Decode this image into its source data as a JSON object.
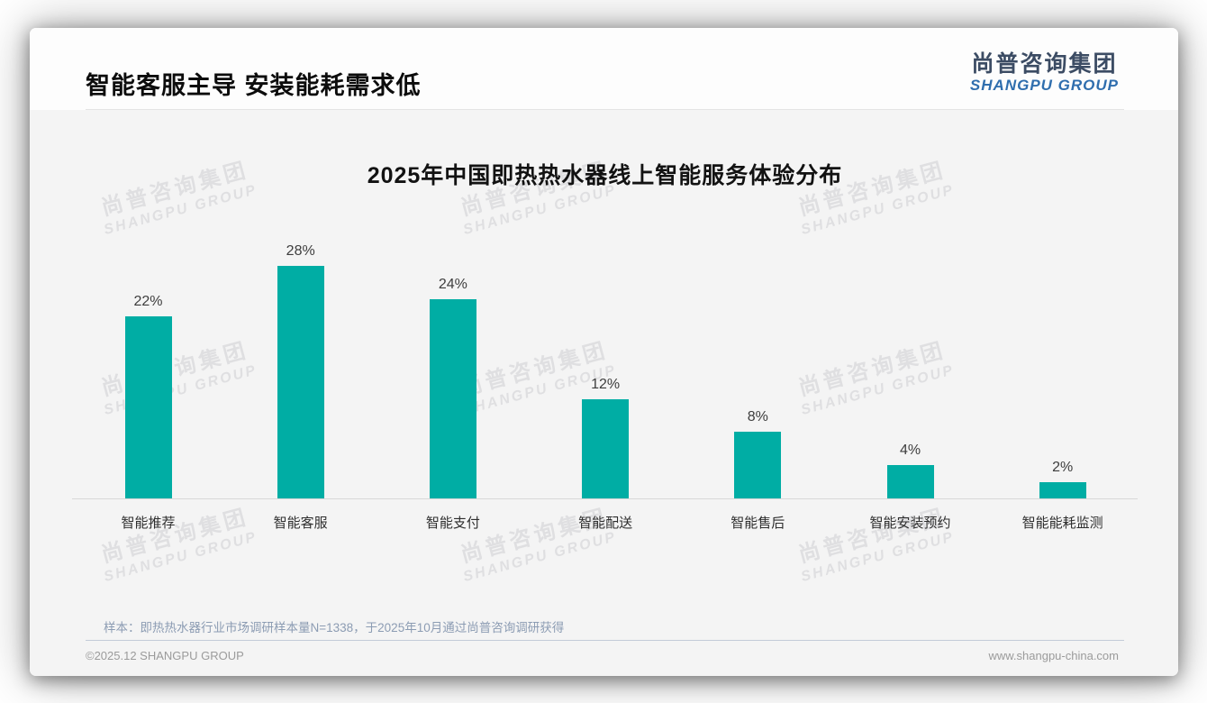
{
  "slide": {
    "title": "智能客服主导 安装能耗需求低",
    "logo": {
      "name_cn": "尚普咨询集团",
      "name_en": "SHANGPU GROUP"
    },
    "watermark": {
      "line1": "尚普咨询集团",
      "line2": "SHANGPU GROUP"
    },
    "note": "样本：即热热水器行业市场调研样本量N=1338，于2025年10月通过尚普咨询调研获得",
    "footer": {
      "copyright": "©2025.12 SHANGPU GROUP",
      "website": "www.shangpu-china.com"
    },
    "colors": {
      "bar": "#00ADA4",
      "logo_cn": "#3C4C64",
      "logo_en": "#2F6EAE",
      "note_text": "#8C9CB3",
      "footer_text": "#9b9b9b"
    }
  },
  "chart_data": {
    "type": "bar",
    "title": "2025年中国即热热水器线上智能服务体验分布",
    "categories": [
      "智能推荐",
      "智能客服",
      "智能支付",
      "智能配送",
      "智能售后",
      "智能安装预约",
      "智能能耗监测"
    ],
    "values": [
      22,
      28,
      24,
      12,
      8,
      4,
      2
    ],
    "data_labels": [
      "22%",
      "28%",
      "24%",
      "12%",
      "8%",
      "4%",
      "2%"
    ],
    "unit": "%",
    "xlabel": "",
    "ylabel": "",
    "ylim": [
      0,
      30
    ],
    "bar_color": "#00ADA4",
    "grid": false,
    "legend": false,
    "axis_line_color": "#d8d8d8"
  }
}
